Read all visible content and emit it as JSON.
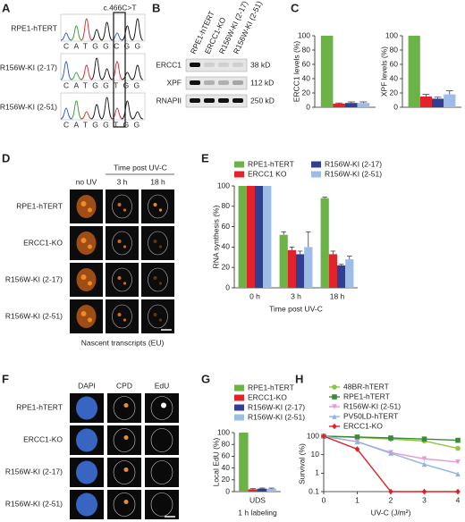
{
  "panels": {
    "labels": [
      "A",
      "B",
      "C",
      "D",
      "E",
      "F",
      "G",
      "H"
    ],
    "A": {
      "mutation": "c.466C>T",
      "rows": [
        {
          "label": "RPE1-hTERT",
          "sequence": "CATGGCGG"
        },
        {
          "label": "R156W-KI (2-17)",
          "sequence": "CATGGTGG"
        },
        {
          "label": "R156W-KI (2-51)",
          "sequence": "CATGGTGG"
        }
      ]
    },
    "B": {
      "lanes": [
        "RPE1-hTERT",
        "ERCC1-KO",
        "R156W-KI (2-17)",
        "R156W-KI (2-51)"
      ],
      "bands": [
        {
          "name": "ERCC1",
          "size": "38 kD"
        },
        {
          "name": "XPF",
          "size": "112 kD"
        },
        {
          "name": "RNAPII",
          "size": "250 kD"
        }
      ]
    },
    "D": {
      "header": "Time post UV-C",
      "columns": [
        "no UV",
        "3 h",
        "18 h"
      ],
      "rows": [
        "RPE1-hTERT",
        "ERCC1-KO",
        "R156W-KI (2-17)",
        "R156W-KI (2-51)"
      ],
      "caption": "Nascent transcripts (EU)"
    },
    "F": {
      "columns": [
        "DAPI",
        "CPD",
        "EdU"
      ],
      "rows": [
        "RPE1-hTERT",
        "ERCC1-KO",
        "R156W-KI (2-17)",
        "R156W-KI (2-51)"
      ]
    }
  },
  "chart_data": [
    {
      "type": "bar",
      "ylabel": "ERCC1 levels (%)",
      "categories": [
        null
      ],
      "ylim": [
        0,
        100
      ],
      "yticks": [
        0,
        20,
        40,
        60,
        80,
        100
      ],
      "series": [
        {
          "color": "#6ab344",
          "values": [
            100
          ],
          "errors": [
            0
          ]
        },
        {
          "color": "#e3232b",
          "values": [
            5
          ],
          "errors": [
            1
          ]
        },
        {
          "color": "#2f3f94",
          "values": [
            6
          ],
          "errors": [
            1.5
          ]
        },
        {
          "color": "#9dbde8",
          "values": [
            6
          ],
          "errors": [
            1.5
          ]
        }
      ]
    },
    {
      "type": "bar",
      "ylabel": "XPF levels (%)",
      "categories": [
        null
      ],
      "ylim": [
        0,
        100
      ],
      "yticks": [
        0,
        20,
        40,
        60,
        80,
        100
      ],
      "series": [
        {
          "color": "#6ab344",
          "values": [
            100
          ],
          "errors": [
            0
          ]
        },
        {
          "color": "#e3232b",
          "values": [
            15
          ],
          "errors": [
            3
          ]
        },
        {
          "color": "#2f3f94",
          "values": [
            12
          ],
          "errors": [
            2
          ]
        },
        {
          "color": "#9dbde8",
          "values": [
            18
          ],
          "errors": [
            5
          ]
        }
      ]
    },
    {
      "type": "bar",
      "ylabel": "RNA synthesis (%)",
      "xlabel": "Time post UV-C",
      "categories": [
        "0 h",
        "3 h",
        "18 h"
      ],
      "ylim": [
        0,
        100
      ],
      "yticks": [
        0,
        20,
        40,
        60,
        80,
        100
      ],
      "legend": "top",
      "series": [
        {
          "name": "RPE1-hTERT",
          "color": "#6ab344",
          "values": [
            100,
            52,
            88
          ],
          "errors": [
            0,
            3,
            1
          ]
        },
        {
          "name": "ERCC1 KO",
          "color": "#e3232b",
          "values": [
            100,
            37,
            33
          ],
          "errors": [
            0,
            3,
            3
          ]
        },
        {
          "name": "R156W-KI (2-17)",
          "color": "#2f3f94",
          "values": [
            100,
            33,
            22
          ],
          "errors": [
            0,
            3,
            1
          ]
        },
        {
          "name": "R156W-KI (2-51)",
          "color": "#9dbde8",
          "values": [
            100,
            40,
            28
          ],
          "errors": [
            0,
            15,
            3
          ]
        }
      ]
    },
    {
      "type": "bar",
      "ylabel": "Local EdU (%)",
      "xlabel": "1 h labeling",
      "categories": [
        "UDS"
      ],
      "ylim": [
        0,
        100
      ],
      "yticks": [
        0,
        20,
        40,
        60,
        80,
        100
      ],
      "legend": "top",
      "series": [
        {
          "name": "RPE1-hTERT",
          "color": "#6ab344",
          "values": [
            100
          ],
          "errors": [
            0
          ]
        },
        {
          "name": "ERCC1-KO",
          "color": "#e3232b",
          "values": [
            4
          ],
          "errors": [
            1
          ]
        },
        {
          "name": "R156W-KI (2-17)",
          "color": "#2f3f94",
          "values": [
            5
          ],
          "errors": [
            1
          ]
        },
        {
          "name": "R156W-KI (2-51)",
          "color": "#9dbde8",
          "values": [
            5
          ],
          "errors": [
            1
          ]
        }
      ]
    },
    {
      "type": "line",
      "ylabel": "Survival (%)",
      "xlabel": "UV-C (J/m²)",
      "log_y": true,
      "legend": "top",
      "x": [
        0,
        1,
        2,
        3,
        4
      ],
      "xlim": [
        0,
        4
      ],
      "xticks": [
        0,
        1,
        2,
        3,
        4
      ],
      "ylim": [
        0.1,
        100
      ],
      "yticks": [
        0.1,
        1,
        10,
        100
      ],
      "series": [
        {
          "name": "48BR-hTERT",
          "color": "#8dc63f",
          "marker": "circle",
          "values": [
            100,
            85,
            70,
            55,
            22
          ]
        },
        {
          "name": "RPE1-hTERT",
          "color": "#3a8a3a",
          "marker": "square",
          "values": [
            100,
            90,
            80,
            70,
            60
          ]
        },
        {
          "name": "R156W-KI (2-51)",
          "color": "#e39ad6",
          "marker": "triangle-down",
          "values": [
            100,
            50,
            13,
            6,
            4
          ]
        },
        {
          "name": "PV50LD-hTERT",
          "color": "#8fb4e3",
          "marker": "triangle-up",
          "values": [
            100,
            50,
            12,
            3,
            0.9
          ]
        },
        {
          "name": "ERCC1-KO",
          "color": "#e31e24",
          "marker": "diamond",
          "values": [
            100,
            20,
            0.1,
            0.1,
            0.1
          ]
        }
      ]
    }
  ]
}
